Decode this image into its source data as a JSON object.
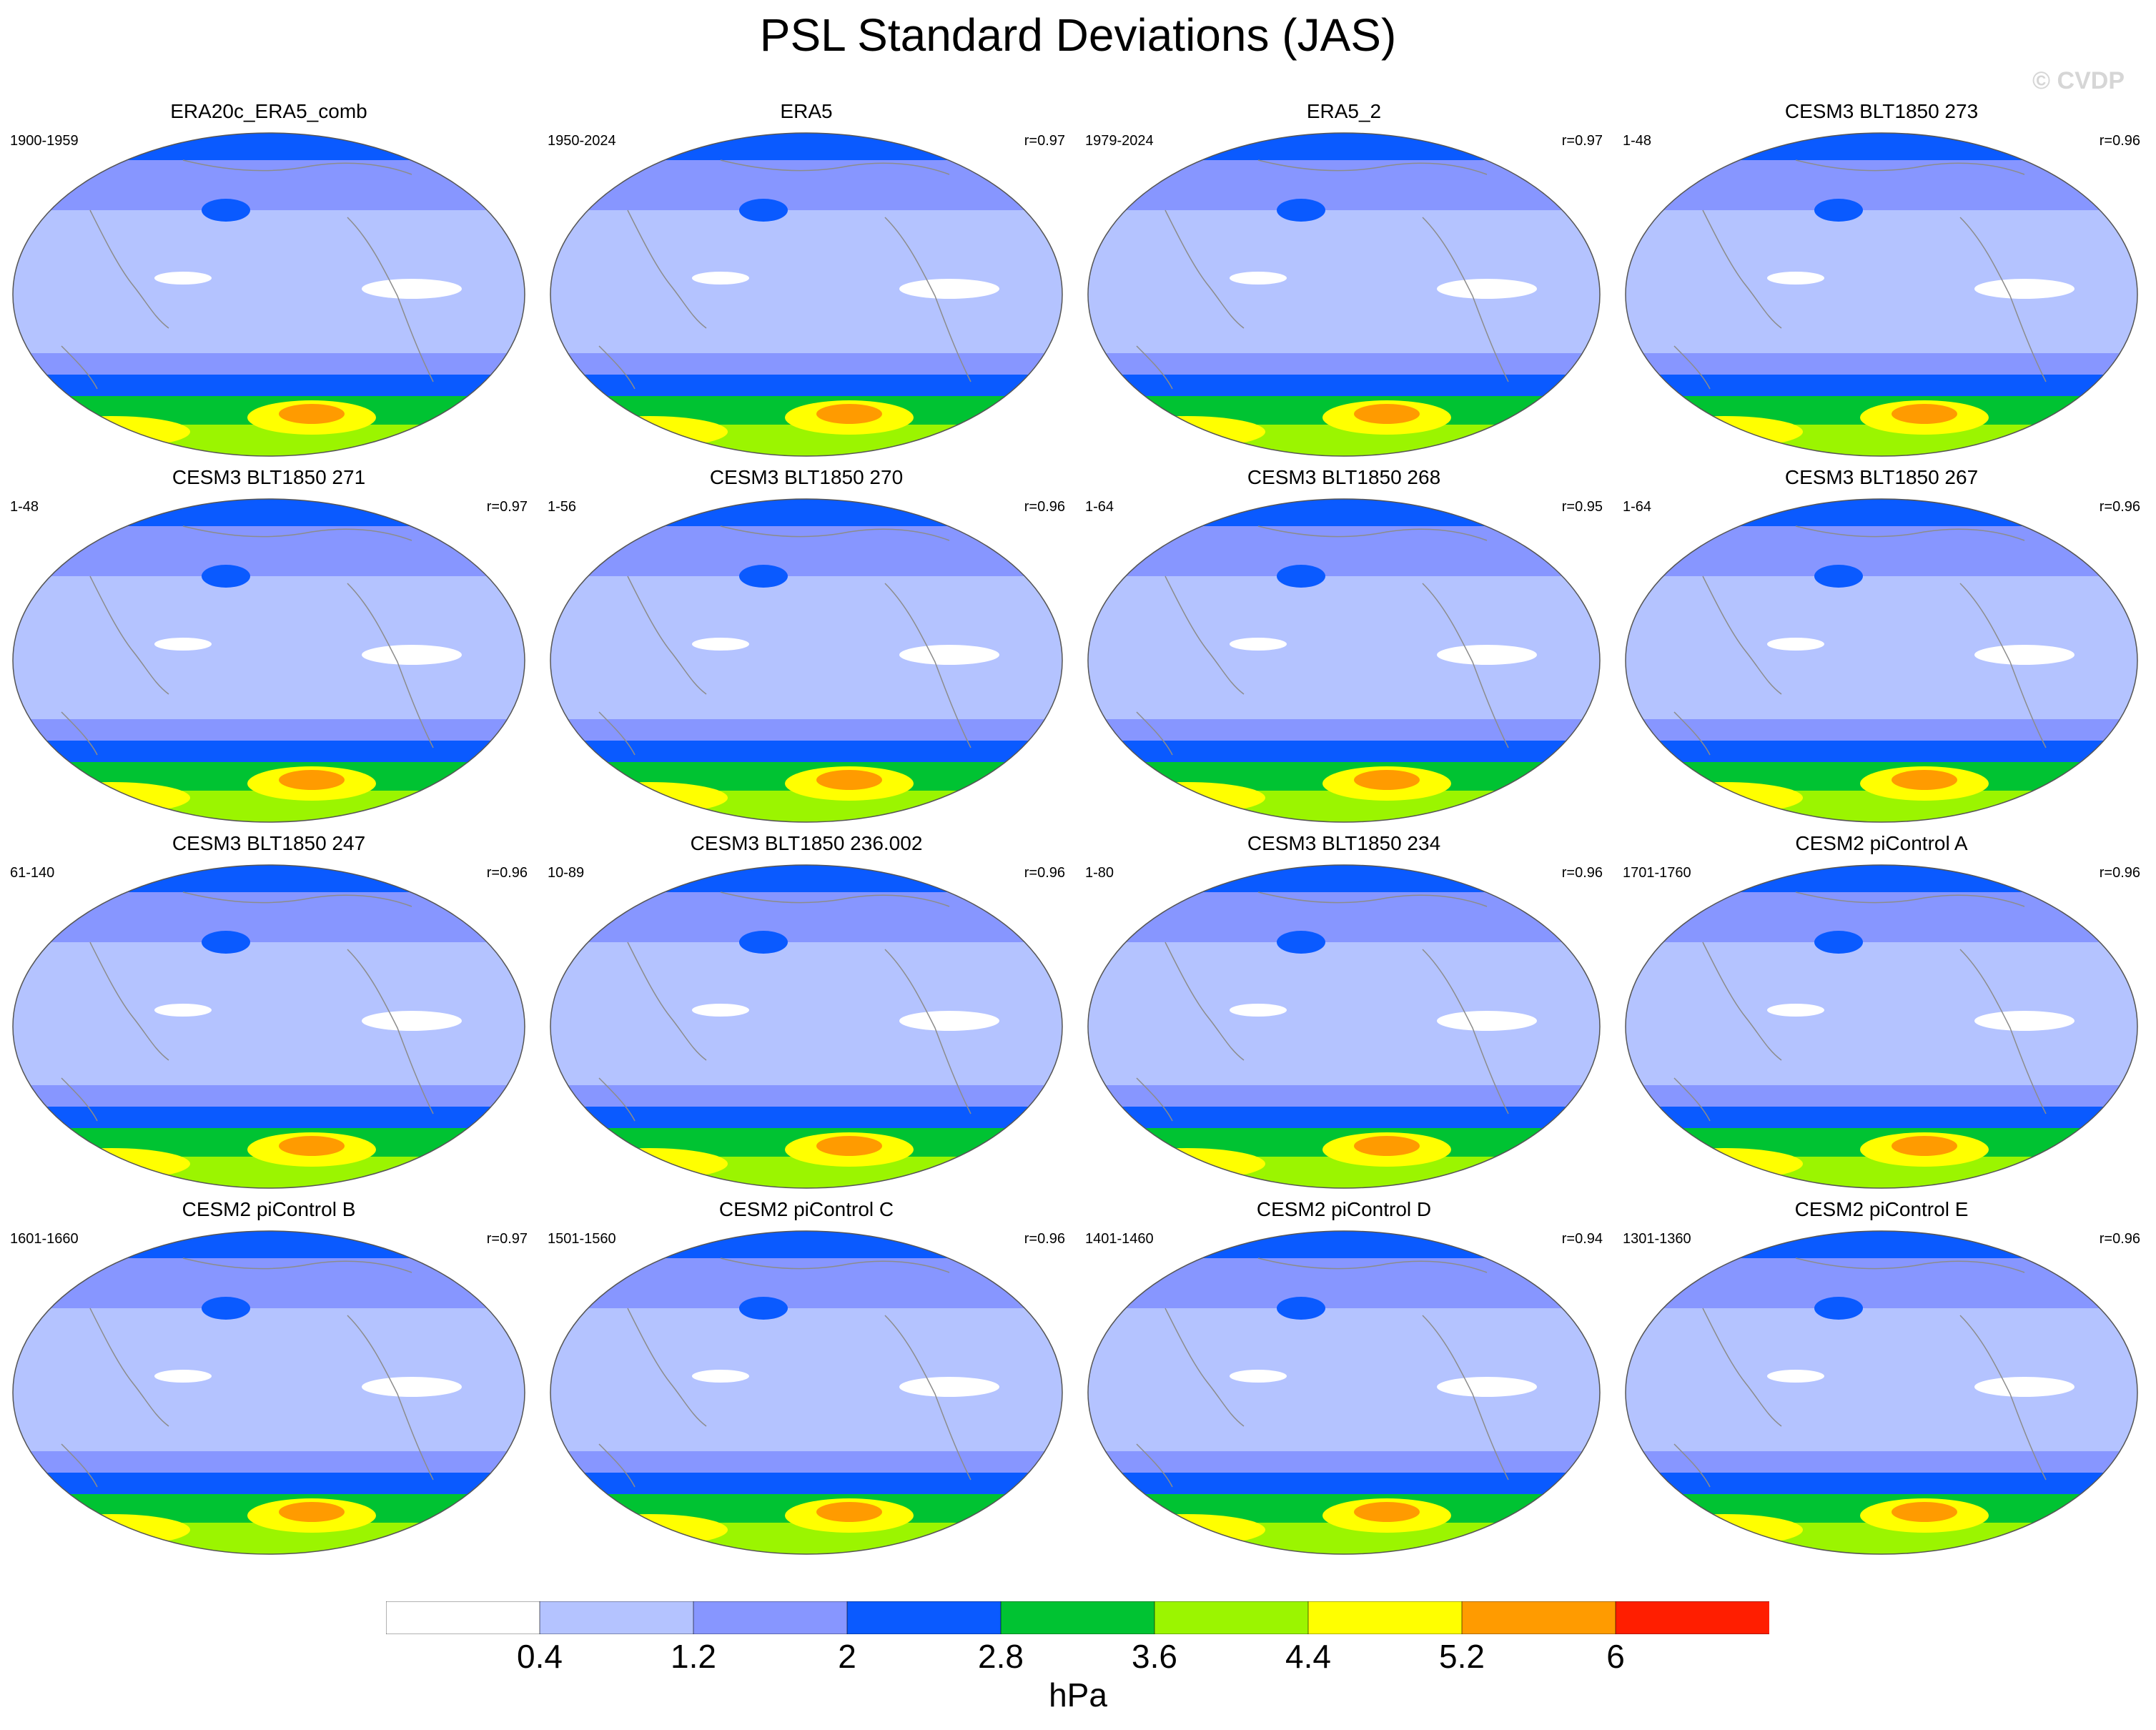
{
  "title": "PSL Standard Deviations (JAS)",
  "watermark": "© CVDP",
  "colorbar": {
    "unit": "hPa",
    "ticks": [
      "0.4",
      "1.2",
      "2",
      "2.8",
      "3.6",
      "4.4",
      "5.2",
      "6"
    ],
    "colors": [
      "#ffffff",
      "#b4c3ff",
      "#8796ff",
      "#0a5aff",
      "#00c332",
      "#9bf500",
      "#ffff00",
      "#ff9b00",
      "#ff1e00"
    ]
  },
  "colors": {
    "land_outline": "#8c8c8c",
    "map_border": "#555555"
  },
  "panels": [
    {
      "title": "ERA20c_ERA5_comb",
      "period": "1900-1959",
      "corr": ""
    },
    {
      "title": "ERA5",
      "period": "1950-2024",
      "corr": "r=0.97"
    },
    {
      "title": "ERA5_2",
      "period": "1979-2024",
      "corr": "r=0.97"
    },
    {
      "title": "CESM3 BLT1850 273",
      "period": "1-48",
      "corr": "r=0.96"
    },
    {
      "title": "CESM3 BLT1850 271",
      "period": "1-48",
      "corr": "r=0.97"
    },
    {
      "title": "CESM3 BLT1850 270",
      "period": "1-56",
      "corr": "r=0.96"
    },
    {
      "title": "CESM3 BLT1850 268",
      "period": "1-64",
      "corr": "r=0.95"
    },
    {
      "title": "CESM3 BLT1850 267",
      "period": "1-64",
      "corr": "r=0.96"
    },
    {
      "title": "CESM3 BLT1850 247",
      "period": "61-140",
      "corr": "r=0.96"
    },
    {
      "title": "CESM3 BLT1850 236.002",
      "period": "10-89",
      "corr": "r=0.96"
    },
    {
      "title": "CESM3 BLT1850 234",
      "period": "1-80",
      "corr": "r=0.96"
    },
    {
      "title": "CESM2 piControl A",
      "period": "1701-1760",
      "corr": "r=0.96"
    },
    {
      "title": "CESM2 piControl B",
      "period": "1601-1660",
      "corr": "r=0.97"
    },
    {
      "title": "CESM2 piControl C",
      "period": "1501-1560",
      "corr": "r=0.96"
    },
    {
      "title": "CESM2 piControl D",
      "period": "1401-1460",
      "corr": "r=0.94"
    },
    {
      "title": "CESM2 piControl E",
      "period": "1301-1360",
      "corr": "r=0.96"
    }
  ]
}
